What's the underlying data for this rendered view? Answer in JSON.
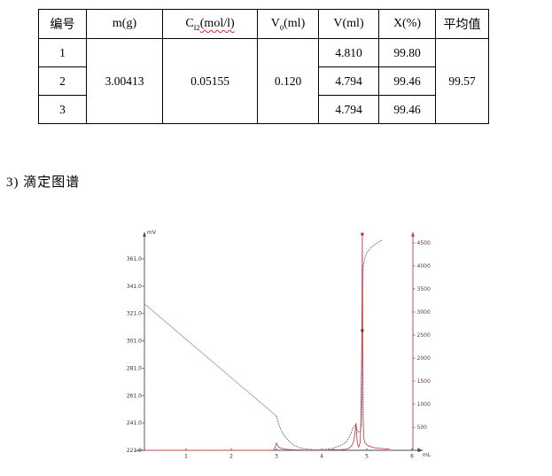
{
  "section_label": "3) 滴定图谱",
  "table": {
    "header": {
      "col0": "编号",
      "col1": "m(g)",
      "col2": {
        "pre": "C",
        "sub": "I2",
        "post": "(mol/l)"
      },
      "col3": {
        "pre": "V",
        "sub": "0",
        "post": "(ml)"
      },
      "col4": "V(ml)",
      "col5": "X(%)",
      "col6": "平均值"
    },
    "merged": {
      "m": "3.00413",
      "c": "0.05155",
      "v0": "0.120",
      "avg": "99.57"
    },
    "rows": [
      {
        "id": "1",
        "v": "4.810",
        "x": "99.80"
      },
      {
        "id": "2",
        "v": "4.794",
        "x": "99.46"
      },
      {
        "id": "3",
        "v": "4.794",
        "x": "99.46"
      }
    ]
  },
  "chart_data": {
    "type": "line",
    "title": "",
    "description": "Potentiometric titration curve (mV vs mL) with first-derivative signal",
    "axis_color": "#4a4a4a",
    "x_axis": {
      "unit_label": "mL",
      "min": 0,
      "max": 6,
      "tick_values": [
        1,
        2,
        3,
        4,
        5,
        6
      ]
    },
    "y_axis_left": {
      "unit_label": "mV",
      "min": 221,
      "max": 375,
      "tick_values": [
        221,
        241,
        261,
        281,
        301,
        321,
        341,
        361
      ],
      "tick_labels": [
        "221.0",
        "241.0",
        "261.0",
        "281.0",
        "301.0",
        "321.0",
        "341.0",
        "361.0"
      ]
    },
    "y_axis_right": {
      "unit_label": "",
      "min": 0,
      "max": 4690,
      "color": "#c04040",
      "tick_values": [
        0,
        500,
        1000,
        1500,
        2000,
        2500,
        3000,
        3500,
        4000,
        4500
      ],
      "tick_labels": [
        "0",
        "500",
        "1000",
        "1500",
        "2000",
        "2500",
        "3000",
        "3500",
        "4000",
        "4500"
      ]
    },
    "series": [
      {
        "name": "potential-initial-segment",
        "axis": "left",
        "color": "#a6a6d6",
        "width": 1,
        "dash": "",
        "points": [
          [
            0.08,
            328
          ],
          [
            3.0,
            246
          ]
        ]
      },
      {
        "name": "potential-titration-curve",
        "axis": "left",
        "color": "#5c5cb0",
        "width": 1,
        "dash": "1.6,1.2",
        "points": [
          [
            3.0,
            246
          ],
          [
            3.05,
            240
          ],
          [
            3.1,
            236
          ],
          [
            3.15,
            233
          ],
          [
            3.2,
            230.5
          ],
          [
            3.3,
            227
          ],
          [
            3.4,
            224.5
          ],
          [
            3.5,
            223
          ],
          [
            3.6,
            222.2
          ],
          [
            3.7,
            221.8
          ],
          [
            3.8,
            221.5
          ],
          [
            3.9,
            221.4
          ],
          [
            4.0,
            221.5
          ],
          [
            4.1,
            221.8
          ],
          [
            4.2,
            222.2
          ],
          [
            4.3,
            223
          ],
          [
            4.4,
            224.2
          ],
          [
            4.5,
            226
          ],
          [
            4.55,
            227.5
          ],
          [
            4.6,
            230
          ],
          [
            4.65,
            233.5
          ],
          [
            4.7,
            237.5
          ],
          [
            4.75,
            240
          ],
          [
            4.78,
            236.5
          ],
          [
            4.82,
            234
          ],
          [
            4.86,
            235
          ],
          [
            4.88,
            240
          ],
          [
            4.895,
            260
          ],
          [
            4.9,
            290
          ],
          [
            4.905,
            320
          ],
          [
            4.91,
            345
          ],
          [
            4.92,
            355
          ],
          [
            4.95,
            361
          ],
          [
            5.0,
            365.5
          ],
          [
            5.1,
            369.5
          ],
          [
            5.2,
            372
          ],
          [
            5.3,
            374
          ],
          [
            5.35,
            375
          ]
        ]
      },
      {
        "name": "first-derivative",
        "axis": "right",
        "color": "#c84848",
        "width": 0.9,
        "dash": "",
        "points": [
          [
            0.1,
            0
          ],
          [
            2.9,
            2
          ],
          [
            2.95,
            10
          ],
          [
            3.0,
            155
          ],
          [
            3.02,
            120
          ],
          [
            3.05,
            70
          ],
          [
            3.1,
            45
          ],
          [
            3.15,
            32
          ],
          [
            3.2,
            25
          ],
          [
            3.3,
            16
          ],
          [
            3.4,
            10
          ],
          [
            3.5,
            7
          ],
          [
            3.7,
            4
          ],
          [
            3.9,
            3
          ],
          [
            4.0,
            3
          ],
          [
            4.1,
            5
          ],
          [
            4.2,
            12
          ],
          [
            4.25,
            22
          ],
          [
            4.3,
            14
          ],
          [
            4.4,
            10
          ],
          [
            4.45,
            18
          ],
          [
            4.5,
            15
          ],
          [
            4.55,
            25
          ],
          [
            4.6,
            45
          ],
          [
            4.65,
            80
          ],
          [
            4.7,
            160
          ],
          [
            4.73,
            300
          ],
          [
            4.76,
            590
          ],
          [
            4.79,
            160
          ],
          [
            4.82,
            70
          ],
          [
            4.85,
            160
          ],
          [
            4.87,
            700
          ],
          [
            4.89,
            2500
          ],
          [
            4.9,
            4690
          ],
          [
            4.91,
            2500
          ],
          [
            4.92,
            700
          ],
          [
            4.93,
            300
          ],
          [
            4.95,
            180
          ],
          [
            5.0,
            120
          ],
          [
            5.05,
            90
          ],
          [
            5.1,
            75
          ],
          [
            5.15,
            60
          ],
          [
            5.2,
            50
          ],
          [
            5.3,
            40
          ],
          [
            5.4,
            32
          ],
          [
            5.5,
            28
          ]
        ]
      }
    ],
    "markers": [
      {
        "name": "derivative-peak-marker",
        "x": 4.9,
        "y": 4690,
        "axis": "right",
        "color": "#cc2222"
      },
      {
        "name": "endpoint-marker",
        "x": 4.9,
        "y": 2600,
        "axis": "right",
        "color": "#443556"
      }
    ]
  }
}
